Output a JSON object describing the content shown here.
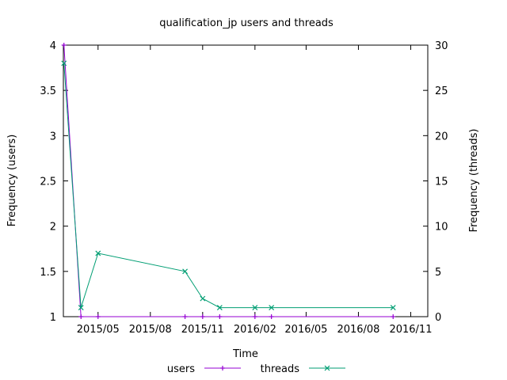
{
  "chart_data": {
    "type": "line",
    "title": "qualification_jp users and threads",
    "xlabel": "Time",
    "ylabel": "Frequency (users)",
    "y2label": "Frequency (threads)",
    "x_range": [
      "2015-03-01",
      "2016-12-01"
    ],
    "x_ticks": [
      {
        "date": "2015-05-01",
        "label": "2015/05"
      },
      {
        "date": "2015-08-01",
        "label": "2015/08"
      },
      {
        "date": "2015-11-01",
        "label": "2015/11"
      },
      {
        "date": "2016-02-01",
        "label": "2016/02"
      },
      {
        "date": "2016-05-01",
        "label": "2016/05"
      },
      {
        "date": "2016-08-01",
        "label": "2016/08"
      },
      {
        "date": "2016-11-01",
        "label": "2016/11"
      }
    ],
    "ylim": [
      1,
      4
    ],
    "y_ticks": [
      {
        "value": 1,
        "label": "1"
      },
      {
        "value": 1.5,
        "label": "1.5"
      },
      {
        "value": 2,
        "label": "2"
      },
      {
        "value": 2.5,
        "label": "2.5"
      },
      {
        "value": 3,
        "label": "3"
      },
      {
        "value": 3.5,
        "label": "3.5"
      },
      {
        "value": 4,
        "label": "4"
      }
    ],
    "y2lim": [
      0,
      30
    ],
    "y2_ticks": [
      {
        "value": 0,
        "label": "0"
      },
      {
        "value": 5,
        "label": "5"
      },
      {
        "value": 10,
        "label": "10"
      },
      {
        "value": 15,
        "label": "15"
      },
      {
        "value": 20,
        "label": "20"
      },
      {
        "value": 25,
        "label": "25"
      },
      {
        "value": 30,
        "label": "30"
      }
    ],
    "grid": false,
    "legend_position": "bottom-center",
    "series": [
      {
        "name": "users",
        "axis": "left",
        "color": "#9400d3",
        "marker": "plus",
        "points": [
          {
            "date": "2015-03-02",
            "value": 4
          },
          {
            "date": "2015-04-01",
            "value": 1
          },
          {
            "date": "2015-05-01",
            "value": 1
          },
          {
            "date": "2015-10-01",
            "value": 1
          },
          {
            "date": "2015-11-01",
            "value": 1
          },
          {
            "date": "2015-12-01",
            "value": 1
          },
          {
            "date": "2016-02-01",
            "value": 1
          },
          {
            "date": "2016-03-01",
            "value": 1
          },
          {
            "date": "2016-10-01",
            "value": 1
          }
        ]
      },
      {
        "name": "threads",
        "axis": "right",
        "color": "#009e73",
        "marker": "cross",
        "points": [
          {
            "date": "2015-03-02",
            "value": 28
          },
          {
            "date": "2015-04-01",
            "value": 1
          },
          {
            "date": "2015-05-01",
            "value": 7
          },
          {
            "date": "2015-10-01",
            "value": 5
          },
          {
            "date": "2015-11-01",
            "value": 2
          },
          {
            "date": "2015-12-01",
            "value": 1
          },
          {
            "date": "2016-02-01",
            "value": 1
          },
          {
            "date": "2016-03-01",
            "value": 1
          },
          {
            "date": "2016-10-01",
            "value": 1
          }
        ]
      }
    ]
  }
}
